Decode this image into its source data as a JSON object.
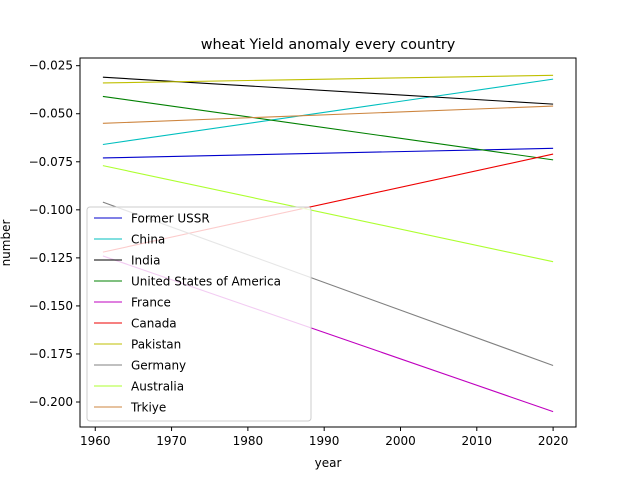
{
  "chart_data": {
    "type": "line",
    "title": "wheat Yield anomaly every country",
    "xlabel": "year",
    "ylabel": "number",
    "xlim": [
      1958,
      2023
    ],
    "ylim": [
      -0.213,
      -0.021
    ],
    "x_ticks": [
      1960,
      1970,
      1980,
      1990,
      2000,
      2010,
      2020
    ],
    "y_ticks": [
      -0.025,
      -0.05,
      -0.075,
      -0.1,
      -0.125,
      -0.15,
      -0.175,
      -0.2
    ],
    "y_tick_labels": [
      "−0.025",
      "−0.050",
      "−0.075",
      "−0.100",
      "−0.125",
      "−0.150",
      "−0.175",
      "−0.200"
    ],
    "x_tick_labels": [
      "1960",
      "1970",
      "1980",
      "1990",
      "2000",
      "2010",
      "2020"
    ],
    "grid": false,
    "legend_position": "lower-left",
    "series": [
      {
        "name": "Former USSR",
        "color": "#0000cc",
        "x": [
          1961,
          2020
        ],
        "values": [
          -0.073,
          -0.068
        ]
      },
      {
        "name": "China",
        "color": "#00bfbf",
        "x": [
          1961,
          2020
        ],
        "values": [
          -0.066,
          -0.032
        ]
      },
      {
        "name": "India",
        "color": "#000000",
        "x": [
          1961,
          2020
        ],
        "values": [
          -0.031,
          -0.045
        ]
      },
      {
        "name": "United States of America",
        "color": "#008000",
        "x": [
          1961,
          2020
        ],
        "values": [
          -0.041,
          -0.074
        ]
      },
      {
        "name": "France",
        "color": "#bf00bf",
        "x": [
          1961,
          2020
        ],
        "values": [
          -0.124,
          -0.205
        ]
      },
      {
        "name": "Canada",
        "color": "#ee0000",
        "x": [
          1961,
          2020
        ],
        "values": [
          -0.122,
          -0.071
        ]
      },
      {
        "name": "Pakistan",
        "color": "#bfbf00",
        "x": [
          1961,
          2020
        ],
        "values": [
          -0.034,
          -0.03
        ]
      },
      {
        "name": "Germany",
        "color": "#808080",
        "x": [
          1961,
          2020
        ],
        "values": [
          -0.096,
          -0.181
        ]
      },
      {
        "name": "Australia",
        "color": "#adff2f",
        "x": [
          1961,
          2020
        ],
        "values": [
          -0.077,
          -0.127
        ]
      },
      {
        "name": "Trkiye",
        "color": "#cd853f",
        "x": [
          1961,
          2020
        ],
        "values": [
          -0.055,
          -0.046
        ]
      }
    ]
  }
}
